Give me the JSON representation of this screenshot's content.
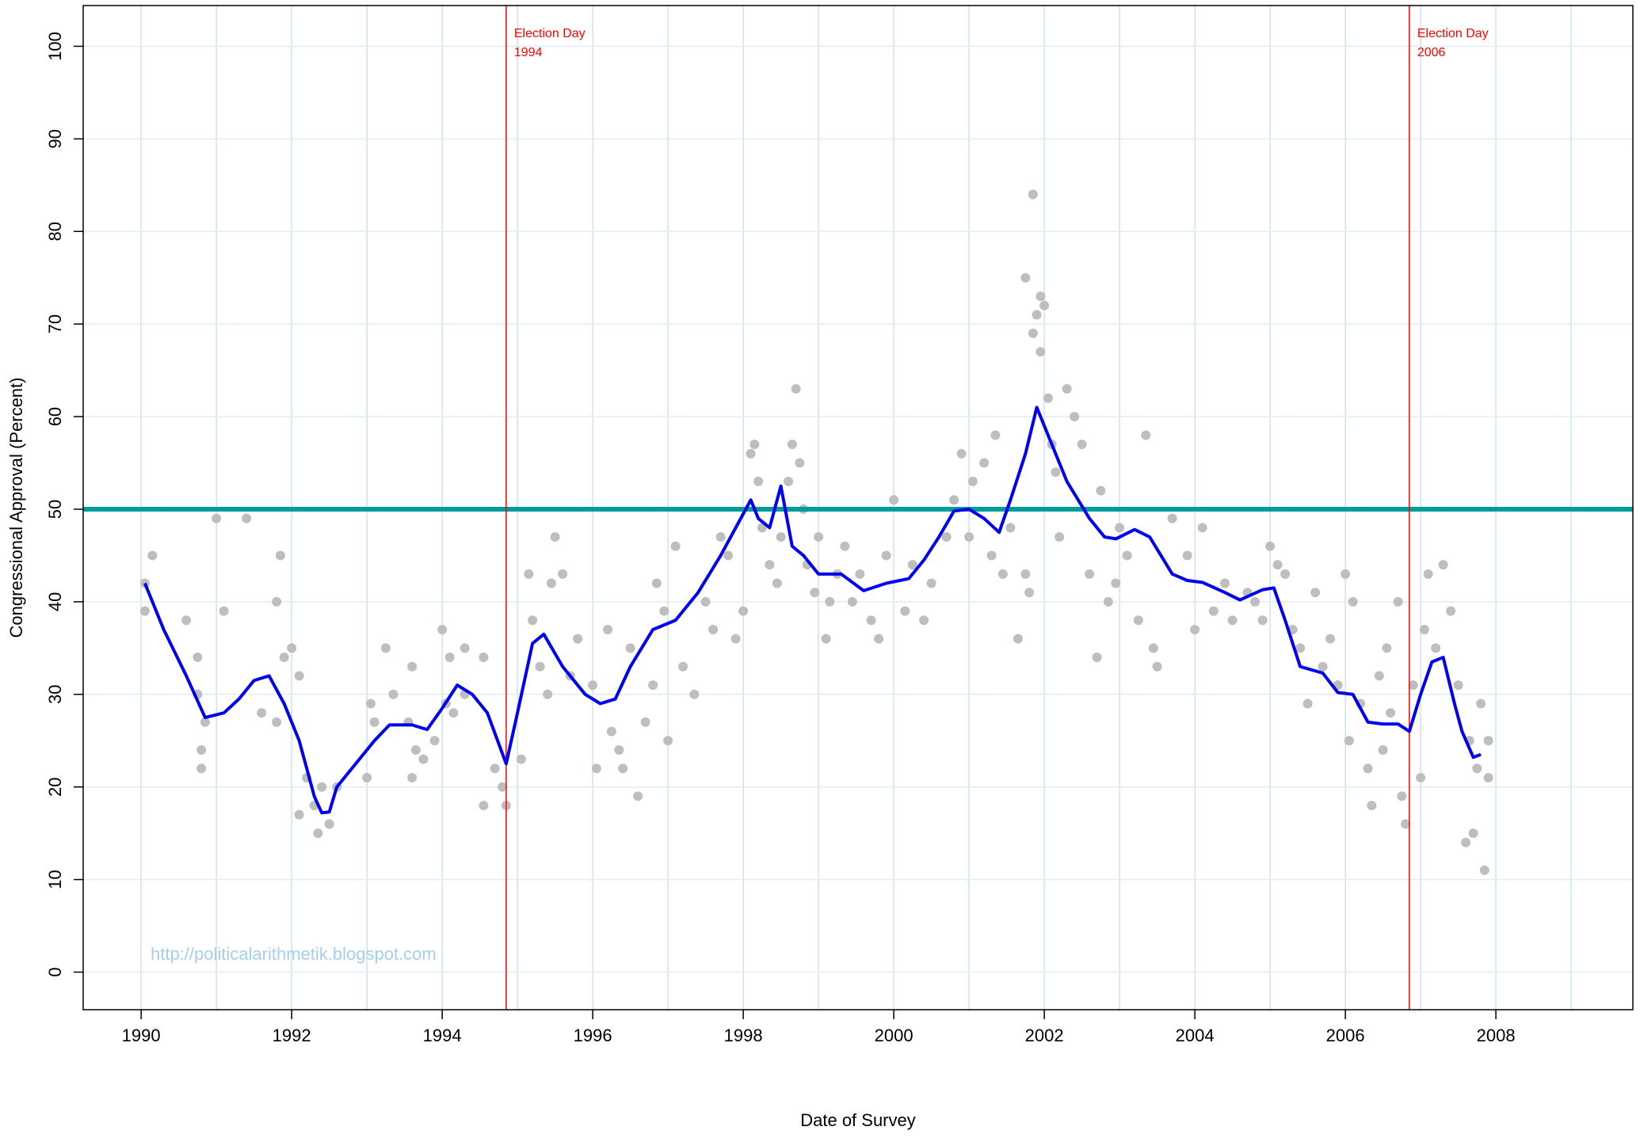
{
  "chart_data": {
    "type": "scatter",
    "x_label": "Date of Survey",
    "y_label": "Congressional Approval (Percent)",
    "watermark": "http://politicalarithmetik.blogspot.com",
    "xlim": [
      1989.23,
      2009.82
    ],
    "ylim": [
      -4.06,
      104.4
    ],
    "xticks": [
      1990,
      1992,
      1994,
      1996,
      1998,
      2000,
      2002,
      2004,
      2006,
      2008
    ],
    "yticks": [
      0,
      10,
      20,
      30,
      40,
      50,
      60,
      70,
      80,
      90,
      100
    ],
    "xgrid": [
      1990,
      1991,
      1992,
      1993,
      1994,
      1995,
      1996,
      1997,
      1998,
      1999,
      2000,
      2001,
      2002,
      2003,
      2004,
      2005,
      2006,
      2007,
      2008,
      2009
    ],
    "grid": true,
    "reference_lines": [
      {
        "axis": "y",
        "value": 50,
        "color": "#009b9b"
      },
      {
        "axis": "x",
        "value": 1994.85,
        "color": "#ff0000",
        "label": [
          "Election Day",
          "1994"
        ]
      },
      {
        "axis": "x",
        "value": 2006.85,
        "color": "#ff0000",
        "label": [
          "Election Day",
          "2006"
        ]
      }
    ],
    "series": [
      {
        "type": "scatter",
        "color": "#bebebe",
        "x": [
          1990.05,
          1990.05,
          1990.15,
          1990.6,
          1990.75,
          1990.75,
          1990.8,
          1990.8,
          1990.85,
          1991.0,
          1991.1,
          1991.4,
          1991.6,
          1991.8,
          1991.85,
          1991.9,
          1991.8,
          1992.0,
          1992.1,
          1992.1,
          1992.2,
          1992.3,
          1992.35,
          1992.4,
          1992.5,
          1992.6,
          1993.0,
          1993.05,
          1993.1,
          1993.25,
          1993.35,
          1993.55,
          1993.6,
          1993.6,
          1993.65,
          1993.75,
          1993.9,
          1994.0,
          1994.05,
          1994.1,
          1994.15,
          1994.3,
          1994.3,
          1994.55,
          1994.55,
          1994.7,
          1994.8,
          1994.85,
          1995.05,
          1995.15,
          1995.2,
          1995.3,
          1995.4,
          1995.45,
          1995.5,
          1995.6,
          1995.7,
          1995.8,
          1996.0,
          1996.05,
          1996.2,
          1996.25,
          1996.35,
          1996.4,
          1996.5,
          1996.6,
          1996.7,
          1996.8,
          1996.85,
          1996.95,
          1997.0,
          1997.1,
          1997.2,
          1997.35,
          1997.5,
          1997.6,
          1997.7,
          1997.8,
          1997.9,
          1998.0,
          1998.1,
          1998.15,
          1998.2,
          1998.25,
          1998.35,
          1998.45,
          1998.5,
          1998.6,
          1998.65,
          1998.7,
          1998.75,
          1998.8,
          1998.85,
          1998.95,
          1999.0,
          1999.1,
          1999.15,
          1999.25,
          1999.35,
          1999.45,
          1999.55,
          1999.7,
          1999.8,
          1999.9,
          2000.0,
          2000.15,
          2000.25,
          2000.4,
          2000.5,
          2000.7,
          2000.8,
          2000.9,
          2001.0,
          2001.05,
          2001.2,
          2001.3,
          2001.35,
          2001.45,
          2001.55,
          2001.65,
          2001.75,
          2001.8,
          2001.75,
          2001.85,
          2001.85,
          2001.9,
          2001.95,
          2001.95,
          2002.0,
          2002.05,
          2002.1,
          2002.15,
          2002.2,
          2002.3,
          2002.4,
          2002.5,
          2002.6,
          2002.7,
          2002.75,
          2002.85,
          2002.95,
          2003.0,
          2003.1,
          2003.25,
          2003.35,
          2003.45,
          2003.5,
          2003.7,
          2003.9,
          2004.0,
          2004.1,
          2004.25,
          2004.4,
          2004.5,
          2004.7,
          2004.8,
          2004.9,
          2005.0,
          2005.1,
          2005.2,
          2005.3,
          2005.4,
          2005.5,
          2005.6,
          2005.7,
          2005.8,
          2005.9,
          2006.0,
          2006.05,
          2006.1,
          2006.2,
          2006.3,
          2006.35,
          2006.45,
          2006.5,
          2006.55,
          2006.6,
          2006.7,
          2006.75,
          2006.8,
          2006.9,
          2007.0,
          2007.05,
          2007.1,
          2007.2,
          2007.3,
          2007.4,
          2007.5,
          2007.6,
          2007.65,
          2007.7,
          2007.75,
          2007.8,
          2007.85,
          2007.9,
          2007.9
        ],
        "values": [
          42,
          39,
          45,
          38,
          34,
          30,
          24,
          22,
          27,
          49,
          39,
          49,
          28,
          40,
          45,
          34,
          27,
          35,
          17,
          32,
          21,
          18,
          15,
          20,
          16,
          20,
          21,
          29,
          27,
          35,
          30,
          27,
          21,
          33,
          24,
          23,
          25,
          37,
          29,
          34,
          28,
          30,
          35,
          34,
          18,
          22,
          20,
          18,
          23,
          43,
          38,
          33,
          30,
          42,
          47,
          43,
          32,
          36,
          31,
          22,
          37,
          26,
          24,
          22,
          35,
          19,
          27,
          31,
          42,
          39,
          25,
          46,
          33,
          30,
          40,
          37,
          47,
          45,
          36,
          39,
          56,
          57,
          53,
          48,
          44,
          42,
          47,
          53,
          57,
          63,
          55,
          50,
          44,
          41,
          47,
          36,
          40,
          43,
          46,
          40,
          43,
          38,
          36,
          45,
          51,
          39,
          44,
          38,
          42,
          47,
          51,
          56,
          47,
          53,
          55,
          45,
          58,
          43,
          48,
          36,
          43,
          41,
          75,
          69,
          84,
          71,
          73,
          67,
          72,
          62,
          57,
          54,
          47,
          63,
          60,
          57,
          43,
          34,
          52,
          40,
          42,
          48,
          45,
          38,
          58,
          35,
          33,
          49,
          45,
          37,
          48,
          39,
          42,
          38,
          41,
          40,
          38,
          46,
          44,
          43,
          37,
          35,
          29,
          41,
          33,
          36,
          31,
          43,
          25,
          40,
          29,
          22,
          18,
          32,
          24,
          35,
          28,
          40,
          19,
          16,
          31,
          21,
          37,
          43,
          35,
          44,
          39,
          31,
          14,
          25,
          15,
          22,
          29,
          11,
          25,
          21
        ]
      },
      {
        "type": "line",
        "color": "#0000ee",
        "x": [
          1990.05,
          1990.3,
          1990.6,
          1990.85,
          1991.1,
          1991.3,
          1991.5,
          1991.7,
          1991.9,
          1992.1,
          1992.3,
          1992.4,
          1992.5,
          1992.6,
          1992.9,
          1993.1,
          1993.3,
          1993.6,
          1993.8,
          1994.0,
          1994.2,
          1994.4,
          1994.6,
          1994.85,
          1995.0,
          1995.2,
          1995.35,
          1995.6,
          1995.9,
          1996.1,
          1996.3,
          1996.5,
          1996.8,
          1997.1,
          1997.4,
          1997.7,
          1997.9,
          1998.1,
          1998.2,
          1998.35,
          1998.5,
          1998.65,
          1998.8,
          1999.0,
          1999.3,
          1999.6,
          1999.9,
          2000.2,
          2000.4,
          2000.6,
          2000.8,
          2001.0,
          2001.2,
          2001.4,
          2001.55,
          2001.75,
          2001.9,
          2002.05,
          2002.3,
          2002.6,
          2002.8,
          2002.95,
          2003.2,
          2003.4,
          2003.7,
          2003.9,
          2004.1,
          2004.4,
          2004.6,
          2004.9,
          2005.05,
          2005.2,
          2005.4,
          2005.7,
          2005.9,
          2006.1,
          2006.3,
          2006.5,
          2006.7,
          2006.85,
          2007.0,
          2007.15,
          2007.3,
          2007.45,
          2007.55,
          2007.7,
          2007.8
        ],
        "values": [
          42,
          37,
          32,
          27.5,
          28,
          29.5,
          31.5,
          32,
          29,
          25,
          19,
          17.2,
          17.3,
          20,
          23,
          25,
          26.7,
          26.7,
          26.2,
          28.5,
          31,
          30,
          28,
          22.5,
          28,
          35.5,
          36.5,
          33,
          30,
          29,
          29.5,
          33,
          37,
          38,
          41,
          45,
          48,
          51,
          49,
          48,
          52.5,
          46,
          45,
          43,
          43,
          41.2,
          42,
          42.5,
          44.5,
          47,
          49.8,
          50,
          49,
          47.5,
          51,
          56,
          61,
          58,
          53,
          49,
          47,
          46.8,
          47.8,
          47,
          43,
          42.3,
          42.1,
          41,
          40.2,
          41.3,
          41.5,
          38,
          33,
          32.3,
          30.2,
          30,
          27,
          26.8,
          26.8,
          26,
          30,
          33.5,
          34,
          29,
          26,
          23.2,
          23.5
        ]
      }
    ]
  }
}
